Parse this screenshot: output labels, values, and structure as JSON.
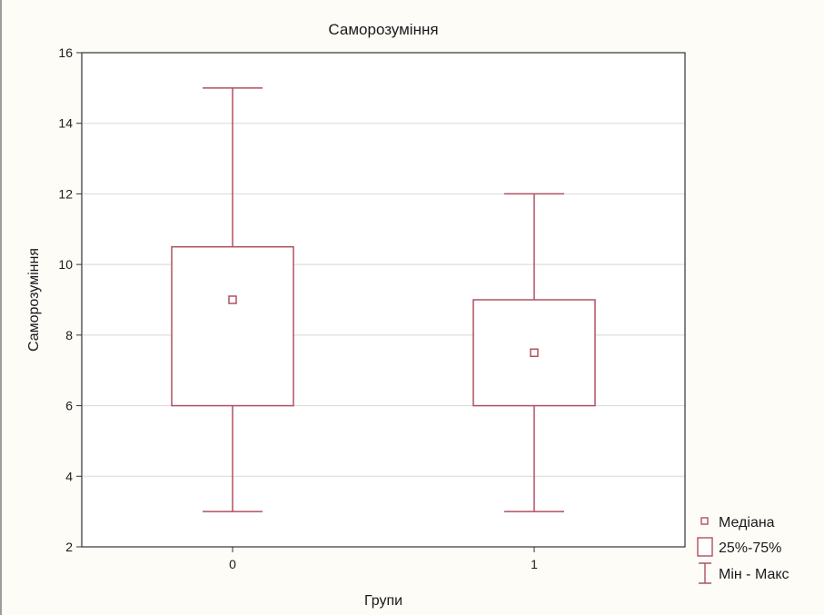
{
  "chart_data": {
    "type": "box",
    "title": "Саморозуміння",
    "xlabel": "Групи",
    "ylabel": "Саморозуміння",
    "ylim": [
      2,
      16
    ],
    "yticks": [
      2,
      4,
      6,
      8,
      10,
      12,
      14,
      16
    ],
    "grid": true,
    "legend_position": "bottom-right",
    "categories": [
      "0",
      "1"
    ],
    "boxes": [
      {
        "category": "0",
        "min": 3,
        "q1": 6,
        "median": 9,
        "q3": 10.5,
        "max": 15
      },
      {
        "category": "1",
        "min": 3,
        "q1": 6,
        "median": 7.5,
        "q3": 9,
        "max": 12
      }
    ],
    "legend": {
      "median": "Медіана",
      "box": "25%-75%",
      "whisker": "Мін - Макс"
    },
    "colors": {
      "box": "#b05060",
      "axis": "#333333",
      "grid": "#d8d8d8",
      "plot_bg": "#ffffff"
    }
  }
}
